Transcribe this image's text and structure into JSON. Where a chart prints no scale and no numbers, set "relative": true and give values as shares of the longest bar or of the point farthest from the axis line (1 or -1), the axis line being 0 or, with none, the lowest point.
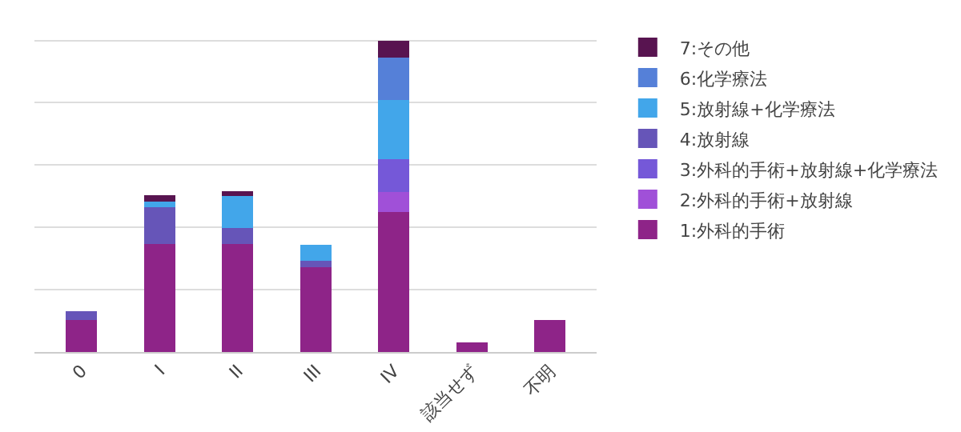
{
  "chart_data": {
    "type": "bar",
    "stacked": true,
    "relative": true,
    "grid": "y",
    "legend": "right",
    "categories": [
      "0",
      "I",
      "II",
      "III",
      "IV",
      "該当せず",
      "不明"
    ],
    "series": [
      {
        "name": "1:外科的手術",
        "color": "#8e2488",
        "values": [
          0.102,
          0.346,
          0.346,
          0.273,
          0.45,
          0.031,
          0.102
        ]
      },
      {
        "name": "2:外科的手術+放射線",
        "color": "#a050d8",
        "values": [
          0,
          0,
          0,
          0,
          0.064,
          0,
          0
        ]
      },
      {
        "name": "3:外科的手術+放射線+化学療法",
        "color": "#7558d8",
        "values": [
          0,
          0,
          0,
          0,
          0.104,
          0,
          0
        ]
      },
      {
        "name": "4:放射線",
        "color": "#6655b8",
        "values": [
          0.028,
          0.118,
          0.052,
          0.019,
          0,
          0,
          0
        ]
      },
      {
        "name": "5:放射線+化学療法",
        "color": "#42a6ea",
        "values": [
          0,
          0.019,
          0.102,
          0.052,
          0.19,
          0,
          0
        ]
      },
      {
        "name": "6:化学療法",
        "color": "#5580d8",
        "values": [
          0,
          0,
          0,
          0,
          0.138,
          0,
          0
        ]
      },
      {
        "name": "7:その他",
        "color": "#581450",
        "values": [
          0,
          0.019,
          0.017,
          0,
          0.054,
          0,
          0
        ]
      }
    ]
  }
}
